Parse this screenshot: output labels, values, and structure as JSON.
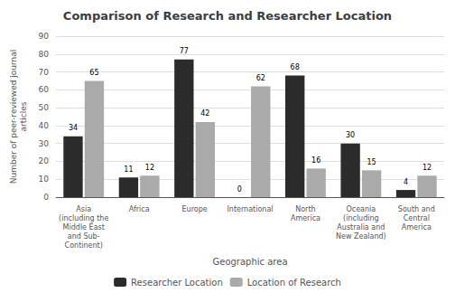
{
  "chart_data": {
    "type": "bar",
    "title": "Comparison of Research and Researcher Location",
    "xlabel": "Geographic area",
    "ylabel": "Number of peer-reviewed journal\narticles",
    "categories": [
      "Asia\n(including the\nMiddle East\nand Sub-\nContinent)",
      "Africa",
      "Europe",
      "International",
      "North\nAmerica",
      "Oceania\n(including\nAustralia and\nNew Zealand)",
      "South and\nCentral\nAmerica"
    ],
    "series": [
      {
        "name": "Researcher Location",
        "color": "#2b2b2b",
        "values": [
          34,
          11,
          77,
          0,
          68,
          30,
          4
        ]
      },
      {
        "name": "Location of Research",
        "color": "#aaaaaa",
        "values": [
          65,
          12,
          42,
          62,
          16,
          15,
          12
        ]
      }
    ],
    "ylim": [
      0,
      90
    ],
    "yticks": [
      0,
      10,
      20,
      30,
      40,
      50,
      60,
      70,
      80,
      90
    ],
    "grid": true,
    "legend": "bottom",
    "data_labels": true
  }
}
